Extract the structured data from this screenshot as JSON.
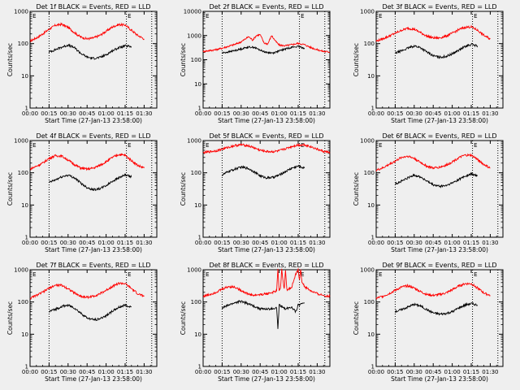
{
  "chart_data": [
    {
      "panel": "1f",
      "title": "Det 1f BLACK = Events, RED = LLD",
      "type": "line",
      "ylog": true,
      "ylim": [
        1,
        1000
      ],
      "yticks": [
        "1",
        "10",
        "100",
        "1000"
      ],
      "ylabel": "Counts/sec",
      "xticks": [
        "00:00",
        "00:15",
        "00:30",
        "00:45",
        "01:00",
        "01:15",
        "01:30"
      ],
      "xlabel": "Start Time (27-Jan-13 23:58:00)",
      "xlim_minutes": [
        0,
        100
      ],
      "vlines_minutes": [
        15,
        76,
        96
      ],
      "markers": [
        {
          "label": "E",
          "minute": 2
        },
        {
          "label": "E",
          "minute": 77
        }
      ],
      "series": [
        {
          "color": "#ff0000",
          "x": [
            0,
            5,
            10,
            15,
            20,
            25,
            30,
            35,
            40,
            45,
            50,
            55,
            60,
            65,
            70,
            75,
            80,
            85,
            90
          ],
          "y": [
            120,
            150,
            200,
            280,
            370,
            400,
            320,
            220,
            160,
            140,
            150,
            180,
            240,
            330,
            390,
            380,
            260,
            180,
            140
          ]
        },
        {
          "color": "#000000",
          "x": [
            15,
            20,
            25,
            30,
            35,
            40,
            45,
            50,
            55,
            60,
            65,
            70,
            75,
            80
          ],
          "y": [
            55,
            65,
            78,
            90,
            75,
            50,
            38,
            35,
            37,
            45,
            60,
            75,
            85,
            80
          ]
        }
      ]
    },
    {
      "panel": "2f",
      "title": "Det 2f BLACK = Events, RED = LLD",
      "type": "line",
      "ylog": true,
      "ylim": [
        1,
        10000
      ],
      "yticks": [
        "1",
        "10",
        "100",
        "1000",
        "10000"
      ],
      "ylabel": "Counts/sec",
      "xticks": [
        "00:00",
        "00:15",
        "00:30",
        "00:45",
        "01:00",
        "01:15",
        "01:30"
      ],
      "xlabel": "Start Time (27-Jan-13 23:58:00)",
      "xlim_minutes": [
        0,
        100
      ],
      "vlines_minutes": [
        15,
        76,
        96
      ],
      "markers": [
        {
          "label": "E",
          "minute": 2
        },
        {
          "label": "E",
          "minute": 77
        }
      ],
      "series": [
        {
          "color": "#ff0000",
          "x": [
            0,
            5,
            10,
            15,
            20,
            25,
            30,
            33,
            36,
            39,
            42,
            45,
            48,
            51,
            54,
            57,
            60,
            65,
            70,
            75,
            80,
            85,
            90,
            95,
            100
          ],
          "y": [
            220,
            240,
            260,
            300,
            360,
            430,
            550,
            700,
            900,
            650,
            1000,
            1100,
            500,
            450,
            1000,
            600,
            400,
            380,
            420,
            480,
            420,
            320,
            260,
            220,
            210
          ]
        },
        {
          "color": "#000000",
          "x": [
            15,
            20,
            25,
            30,
            35,
            40,
            45,
            50,
            55,
            60,
            65,
            70,
            75,
            80
          ],
          "y": [
            190,
            210,
            240,
            280,
            330,
            330,
            250,
            200,
            190,
            230,
            280,
            330,
            350,
            300
          ]
        }
      ]
    },
    {
      "panel": "3f",
      "title": "Det 3f BLACK = Events, RED = LLD",
      "type": "line",
      "ylog": true,
      "ylim": [
        1,
        1000
      ],
      "yticks": [
        "1",
        "10",
        "100",
        "1000"
      ],
      "ylabel": "Counts/sec",
      "xticks": [
        "00:00",
        "00:15",
        "00:30",
        "00:45",
        "01:00",
        "01:15",
        "01:30"
      ],
      "xlabel": "Start Time (27-Jan-13 23:58:00)",
      "xlim_minutes": [
        0,
        100
      ],
      "vlines_minutes": [
        15,
        76,
        96
      ],
      "markers": [
        {
          "label": "E",
          "minute": 2
        },
        {
          "label": "E",
          "minute": 77
        }
      ],
      "series": [
        {
          "color": "#ff0000",
          "x": [
            0,
            5,
            10,
            15,
            20,
            25,
            30,
            35,
            40,
            45,
            50,
            55,
            60,
            65,
            70,
            75,
            80,
            85,
            90
          ],
          "y": [
            120,
            140,
            170,
            210,
            260,
            300,
            280,
            220,
            170,
            150,
            150,
            170,
            210,
            270,
            320,
            330,
            260,
            180,
            140
          ]
        },
        {
          "color": "#000000",
          "x": [
            15,
            20,
            25,
            30,
            35,
            40,
            45,
            50,
            55,
            60,
            65,
            70,
            75,
            80
          ],
          "y": [
            50,
            60,
            72,
            85,
            75,
            55,
            42,
            38,
            40,
            48,
            62,
            80,
            95,
            85
          ]
        }
      ]
    },
    {
      "panel": "4f",
      "title": "Det 4f BLACK = Events, RED = LLD",
      "type": "line",
      "ylog": true,
      "ylim": [
        1,
        1000
      ],
      "yticks": [
        "1",
        "10",
        "100",
        "1000"
      ],
      "ylabel": "Counts/sec",
      "xticks": [
        "00:00",
        "00:15",
        "00:30",
        "00:45",
        "01:00",
        "01:15",
        "01:30"
      ],
      "xlabel": "Start Time (27-Jan-13 23:58:00)",
      "xlim_minutes": [
        0,
        100
      ],
      "vlines_minutes": [
        15,
        76,
        96
      ],
      "markers": [
        {
          "label": "E",
          "minute": 2
        },
        {
          "label": "E",
          "minute": 77
        }
      ],
      "series": [
        {
          "color": "#ff0000",
          "x": [
            0,
            5,
            10,
            15,
            20,
            25,
            30,
            35,
            40,
            45,
            50,
            55,
            60,
            65,
            70,
            75,
            80,
            85,
            90
          ],
          "y": [
            130,
            160,
            200,
            280,
            340,
            330,
            250,
            180,
            140,
            130,
            140,
            170,
            220,
            300,
            370,
            350,
            240,
            170,
            140
          ]
        },
        {
          "color": "#000000",
          "x": [
            15,
            20,
            25,
            30,
            35,
            40,
            45,
            50,
            55,
            60,
            65,
            70,
            75,
            80
          ],
          "y": [
            50,
            60,
            75,
            85,
            70,
            48,
            35,
            30,
            32,
            40,
            55,
            70,
            85,
            75
          ]
        }
      ]
    },
    {
      "panel": "5f",
      "title": "Det 5f BLACK = Events, RED = LLD",
      "type": "line",
      "ylog": true,
      "ylim": [
        1,
        1000
      ],
      "yticks": [
        "1",
        "10",
        "100",
        "1000"
      ],
      "ylabel": "Counts/sec",
      "xticks": [
        "00:00",
        "00:15",
        "00:30",
        "00:45",
        "01:00",
        "01:15",
        "01:30"
      ],
      "xlabel": "Start Time (27-Jan-13 23:58:00)",
      "xlim_minutes": [
        0,
        100
      ],
      "vlines_minutes": [
        15,
        76,
        96
      ],
      "markers": [
        {
          "label": "E",
          "minute": 2
        },
        {
          "label": "E",
          "minute": 77
        }
      ],
      "series": [
        {
          "color": "#ff0000",
          "x": [
            0,
            5,
            10,
            15,
            20,
            25,
            30,
            35,
            40,
            45,
            50,
            55,
            60,
            65,
            70,
            75,
            80,
            85,
            90,
            95,
            100
          ],
          "y": [
            420,
            450,
            480,
            540,
            620,
            700,
            740,
            700,
            600,
            500,
            460,
            450,
            480,
            560,
            660,
            730,
            740,
            650,
            540,
            460,
            430
          ]
        },
        {
          "color": "#000000",
          "x": [
            15,
            20,
            25,
            30,
            35,
            40,
            45,
            50,
            55,
            60,
            65,
            70,
            75,
            80
          ],
          "y": [
            85,
            110,
            130,
            150,
            140,
            110,
            80,
            70,
            72,
            85,
            110,
            140,
            160,
            140
          ]
        }
      ]
    },
    {
      "panel": "6f",
      "title": "Det 6f BLACK = Events, RED = LLD",
      "type": "line",
      "ylog": true,
      "ylim": [
        1,
        1000
      ],
      "yticks": [
        "1",
        "10",
        "100",
        "1000"
      ],
      "ylabel": "Counts/sec",
      "xticks": [
        "00:00",
        "00:15",
        "00:30",
        "00:45",
        "01:00",
        "01:15",
        "01:30"
      ],
      "xlabel": "Start Time (27-Jan-13 23:58:00)",
      "xlim_minutes": [
        0,
        100
      ],
      "vlines_minutes": [
        15,
        76,
        96
      ],
      "markers": [
        {
          "label": "E",
          "minute": 2
        },
        {
          "label": "E",
          "minute": 77
        }
      ],
      "series": [
        {
          "color": "#ff0000",
          "x": [
            0,
            5,
            10,
            15,
            20,
            25,
            30,
            35,
            40,
            45,
            50,
            55,
            60,
            65,
            70,
            75,
            80,
            85,
            90
          ],
          "y": [
            120,
            140,
            180,
            230,
            300,
            330,
            280,
            210,
            160,
            140,
            150,
            170,
            220,
            290,
            350,
            350,
            260,
            180,
            140
          ]
        },
        {
          "color": "#000000",
          "x": [
            15,
            20,
            25,
            30,
            35,
            40,
            45,
            50,
            55,
            60,
            65,
            70,
            75,
            80
          ],
          "y": [
            45,
            55,
            70,
            85,
            75,
            55,
            42,
            38,
            40,
            48,
            62,
            78,
            92,
            80
          ]
        }
      ]
    },
    {
      "panel": "7f",
      "title": "Det 7f BLACK = Events, RED = LLD",
      "type": "line",
      "ylog": true,
      "ylim": [
        1,
        1000
      ],
      "yticks": [
        "1",
        "10",
        "100",
        "1000"
      ],
      "ylabel": "Counts/sec",
      "xticks": [
        "00:00",
        "00:15",
        "00:30",
        "00:45",
        "01:00",
        "01:15",
        "01:30"
      ],
      "xlabel": "Start Time (27-Jan-13 23:58:00)",
      "xlim_minutes": [
        0,
        100
      ],
      "vlines_minutes": [
        15,
        76,
        96
      ],
      "markers": [
        {
          "label": "E",
          "minute": 2
        },
        {
          "label": "E",
          "minute": 77
        }
      ],
      "series": [
        {
          "color": "#ff0000",
          "x": [
            0,
            5,
            10,
            15,
            20,
            25,
            30,
            35,
            40,
            45,
            50,
            55,
            60,
            65,
            70,
            75,
            80,
            85,
            90
          ],
          "y": [
            130,
            160,
            200,
            270,
            330,
            330,
            260,
            190,
            150,
            140,
            150,
            180,
            230,
            310,
            380,
            370,
            260,
            180,
            150
          ]
        },
        {
          "color": "#000000",
          "x": [
            15,
            20,
            25,
            30,
            35,
            40,
            45,
            50,
            55,
            60,
            65,
            70,
            75,
            80
          ],
          "y": [
            50,
            60,
            72,
            80,
            65,
            45,
            32,
            28,
            30,
            38,
            52,
            68,
            80,
            70
          ]
        }
      ]
    },
    {
      "panel": "8f",
      "title": "Det 8f BLACK = Events, RED = LLD",
      "type": "line",
      "ylog": true,
      "ylim": [
        1,
        1000
      ],
      "yticks": [
        "1",
        "10",
        "100",
        "1000"
      ],
      "ylabel": "Counts/sec",
      "xticks": [
        "00:00",
        "00:15",
        "00:30",
        "00:45",
        "01:00",
        "01:15",
        "01:30"
      ],
      "xlabel": "Start Time (27-Jan-13 23:58:00)",
      "xlim_minutes": [
        0,
        100
      ],
      "vlines_minutes": [
        15,
        76,
        96
      ],
      "markers": [
        {
          "label": "E",
          "minute": 2
        },
        {
          "label": "E",
          "minute": 77
        }
      ],
      "series": [
        {
          "color": "#ff0000",
          "x": [
            0,
            5,
            10,
            15,
            20,
            25,
            30,
            35,
            40,
            45,
            50,
            55,
            58,
            59,
            60,
            61,
            62,
            64,
            65,
            66,
            68,
            70,
            73,
            75,
            76,
            77,
            78,
            80,
            85,
            90,
            95,
            100
          ],
          "y": [
            150,
            170,
            200,
            250,
            300,
            290,
            230,
            180,
            160,
            170,
            180,
            200,
            220,
            1000,
            230,
            260,
            1000,
            250,
            1000,
            240,
            260,
            300,
            700,
            1000,
            500,
            1000,
            420,
            300,
            220,
            180,
            160,
            150
          ]
        },
        {
          "color": "#000000",
          "x": [
            15,
            20,
            25,
            30,
            35,
            40,
            45,
            50,
            55,
            58,
            59,
            60,
            65,
            70,
            73,
            75,
            78,
            80
          ],
          "y": [
            65,
            80,
            95,
            105,
            90,
            75,
            62,
            60,
            62,
            65,
            15,
            80,
            62,
            70,
            50,
            80,
            90,
            95
          ]
        }
      ]
    },
    {
      "panel": "9f",
      "title": "Det 9f BLACK = Events, RED = LLD",
      "type": "line",
      "ylog": true,
      "ylim": [
        1,
        1000
      ],
      "yticks": [
        "1",
        "10",
        "100",
        "1000"
      ],
      "ylabel": "Counts/sec",
      "xticks": [
        "00:00",
        "00:15",
        "00:30",
        "00:45",
        "01:00",
        "01:15",
        "01:30"
      ],
      "xlabel": "Start Time (27-Jan-13 23:58:00)",
      "xlim_minutes": [
        0,
        100
      ],
      "vlines_minutes": [
        15,
        76,
        96
      ],
      "markers": [
        {
          "label": "E",
          "minute": 2
        },
        {
          "label": "E",
          "minute": 77
        }
      ],
      "series": [
        {
          "color": "#ff0000",
          "x": [
            0,
            5,
            10,
            15,
            20,
            25,
            30,
            35,
            40,
            45,
            50,
            55,
            60,
            65,
            70,
            75,
            80,
            85,
            90
          ],
          "y": [
            130,
            150,
            180,
            230,
            290,
            320,
            270,
            210,
            170,
            160,
            170,
            190,
            240,
            310,
            370,
            370,
            270,
            190,
            160
          ]
        },
        {
          "color": "#000000",
          "x": [
            15,
            20,
            25,
            30,
            35,
            40,
            45,
            50,
            55,
            60,
            65,
            70,
            75,
            80
          ],
          "y": [
            50,
            58,
            70,
            85,
            75,
            58,
            46,
            42,
            44,
            50,
            65,
            80,
            90,
            80
          ]
        }
      ]
    }
  ]
}
